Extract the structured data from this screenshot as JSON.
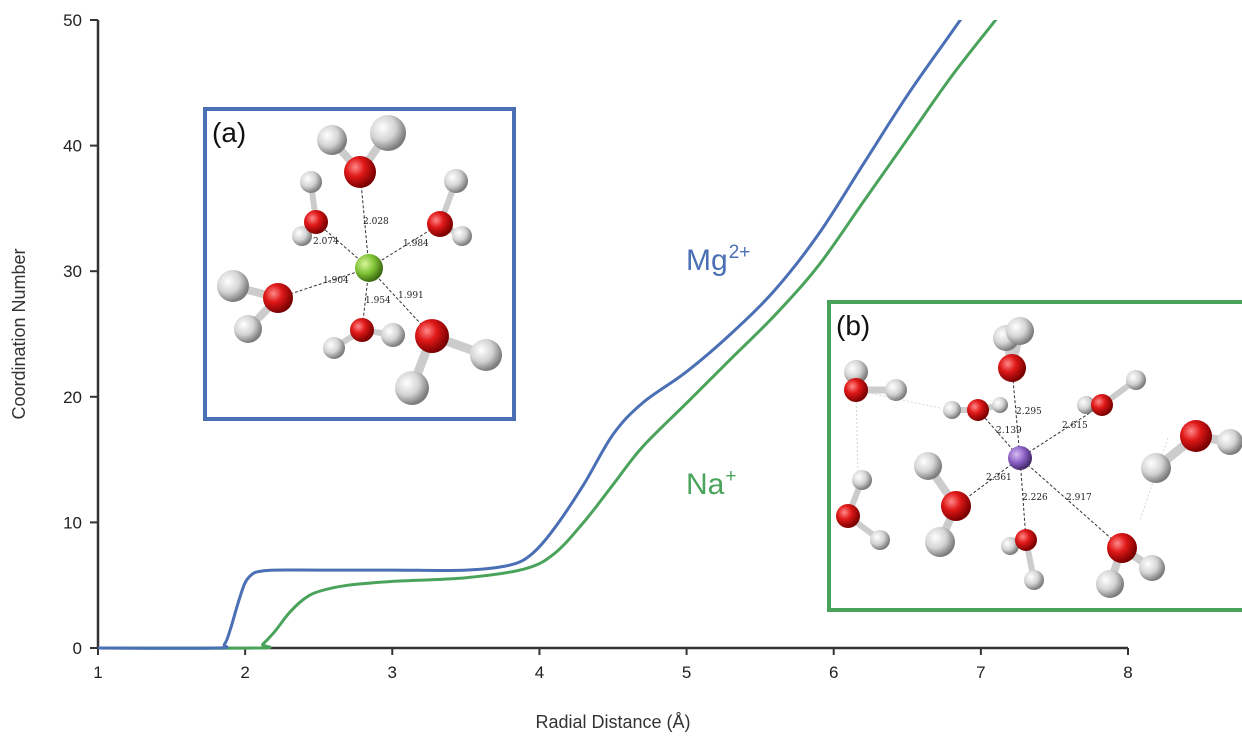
{
  "chart_data": {
    "type": "line",
    "xlabel": "Radial Distance (Å)",
    "ylabel": "Coordination Number",
    "xlim": [
      1,
      8
    ],
    "ylim": [
      0,
      50
    ],
    "xticks": [
      "1",
      "2",
      "3",
      "4",
      "5",
      "6",
      "7",
      "8"
    ],
    "yticks": [
      "0",
      "10",
      "20",
      "30",
      "40",
      "50"
    ],
    "grid": false,
    "series": [
      {
        "name": "Mg2+",
        "label_main": "Mg",
        "label_sup": "2+",
        "color": "#4a6fb5",
        "x": [
          1.0,
          1.8,
          1.86,
          1.9,
          1.95,
          2.0,
          2.05,
          2.1,
          2.2,
          2.5,
          3.0,
          3.5,
          3.8,
          3.95,
          4.1,
          4.3,
          4.5,
          4.7,
          5.0,
          5.3,
          5.6,
          5.9,
          6.2,
          6.5,
          6.8,
          6.95
        ],
        "y": [
          0,
          0,
          0.3,
          1.5,
          3.5,
          5.2,
          5.9,
          6.1,
          6.2,
          6.2,
          6.2,
          6.2,
          6.6,
          7.5,
          9.5,
          13.0,
          17.0,
          19.5,
          22.0,
          25.0,
          28.5,
          33.0,
          38.5,
          44.0,
          49.0,
          51.5
        ]
      },
      {
        "name": "Na+",
        "label_main": "Na",
        "label_sup": "+",
        "color": "#4aa35a",
        "x": [
          1.0,
          2.08,
          2.12,
          2.2,
          2.3,
          2.4,
          2.5,
          2.7,
          3.0,
          3.5,
          3.9,
          4.1,
          4.3,
          4.5,
          4.7,
          5.0,
          5.3,
          5.6,
          5.9,
          6.2,
          6.5,
          6.8,
          7.1,
          7.2
        ],
        "y": [
          0,
          0,
          0.3,
          1.3,
          2.8,
          3.9,
          4.5,
          5.0,
          5.3,
          5.6,
          6.3,
          7.5,
          10.0,
          13.0,
          16.0,
          19.5,
          23.0,
          26.5,
          30.5,
          35.5,
          40.5,
          45.5,
          50.0,
          51.5
        ]
      }
    ],
    "insets": [
      {
        "label": "(a)",
        "border_color": "#4a6fb5",
        "ion_color": "#7ec234",
        "bond_lengths": [
          "2.028",
          "2.074",
          "1.984",
          "1.904",
          "1.954",
          "1.991"
        ]
      },
      {
        "label": "(b)",
        "border_color": "#4aa35a",
        "ion_color": "#8a5fc4",
        "bond_lengths": [
          "2.295",
          "2.139",
          "2.615",
          "2.361",
          "2.226",
          "2.917"
        ]
      }
    ]
  }
}
